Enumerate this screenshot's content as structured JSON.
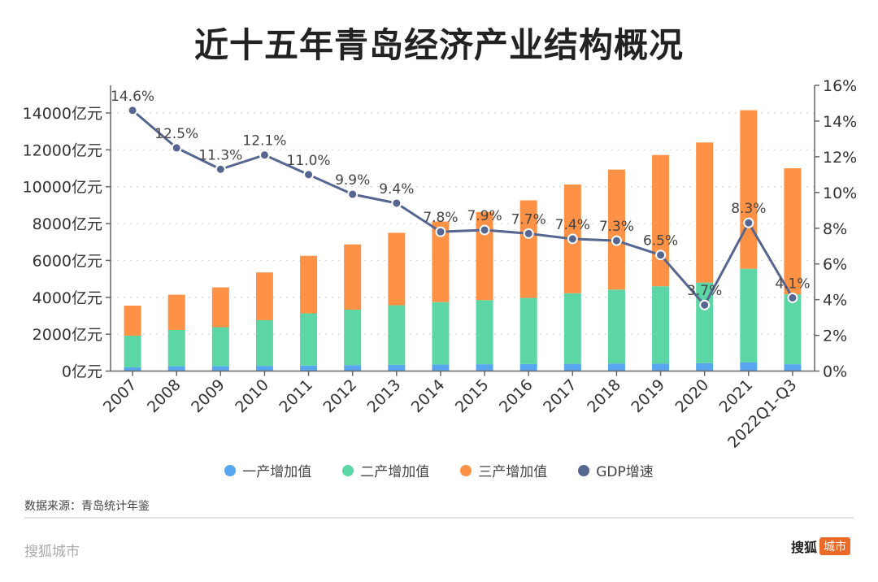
{
  "chart_data": {
    "type": "bar",
    "title": "近十五年青岛经济产业结构概况",
    "categories": [
      "2007",
      "2008",
      "2009",
      "2010",
      "2011",
      "2012",
      "2013",
      "2014",
      "2015",
      "2016",
      "2017",
      "2018",
      "2019",
      "2020",
      "2021",
      "2022Q1-Q3"
    ],
    "series": [
      {
        "name": "一产增加值",
        "type": "bar",
        "stack": "total",
        "axis": "left",
        "color": "#57a6ef",
        "values": [
          200,
          260,
          270,
          280,
          300,
          320,
          340,
          350,
          370,
          380,
          390,
          410,
          400,
          430,
          480,
          370
        ]
      },
      {
        "name": "二产增加值",
        "type": "bar",
        "stack": "total",
        "axis": "left",
        "color": "#5dd6a6",
        "values": [
          1720,
          1970,
          2110,
          2480,
          2830,
          3010,
          3230,
          3390,
          3480,
          3590,
          3830,
          4010,
          4200,
          4370,
          5070,
          3790
        ]
      },
      {
        "name": "三产增加值",
        "type": "bar",
        "stack": "total",
        "axis": "left",
        "color": "#fd9145",
        "values": [
          1630,
          1910,
          2160,
          2590,
          3120,
          3540,
          3930,
          4370,
          4780,
          5290,
          5900,
          6510,
          7120,
          7600,
          8600,
          6840
        ]
      },
      {
        "name": "GDP增速",
        "type": "line",
        "axis": "right",
        "color": "#566690",
        "values": [
          14.6,
          12.5,
          11.3,
          12.1,
          11.0,
          9.9,
          9.4,
          7.8,
          7.9,
          7.7,
          7.4,
          7.3,
          6.5,
          3.7,
          8.3,
          4.1
        ],
        "labels": [
          "14.6%",
          "12.5%",
          "11.3%",
          "12.1%",
          "11.0%",
          "9.9%",
          "9.4%",
          "7.8%",
          "7.9%",
          "7.7%",
          "7.4%",
          "7.3%",
          "6.5%",
          "3.7%",
          "8.3%",
          "4.1%"
        ]
      }
    ],
    "y_left": {
      "min": 0,
      "max": 14000,
      "step": 2000,
      "unit": "亿元",
      "tick_labels": [
        "0亿元",
        "2000亿元",
        "4000亿元",
        "6000亿元",
        "8000亿元",
        "10000亿元",
        "12000亿元",
        "14000亿元"
      ]
    },
    "y_right": {
      "min": 0,
      "max": 16,
      "step": 2,
      "unit": "%",
      "tick_labels": [
        "0%",
        "2%",
        "4%",
        "6%",
        "8%",
        "10%",
        "12%",
        "14%",
        "16%"
      ]
    },
    "xlabel": "",
    "ylabel": "",
    "grid": true,
    "legend_position": "bottom"
  },
  "legend": [
    {
      "label": "一产增加值",
      "color": "#57a6ef"
    },
    {
      "label": "二产增加值",
      "color": "#5dd6a6"
    },
    {
      "label": "三产增加值",
      "color": "#fd9145"
    },
    {
      "label": "GDP增速",
      "color": "#566690"
    }
  ],
  "footer": {
    "source": "数据来源：青岛统计年鉴",
    "brand_left": "搜狐城市",
    "brand_right_main": "搜狐",
    "brand_right_badge": "城市"
  }
}
